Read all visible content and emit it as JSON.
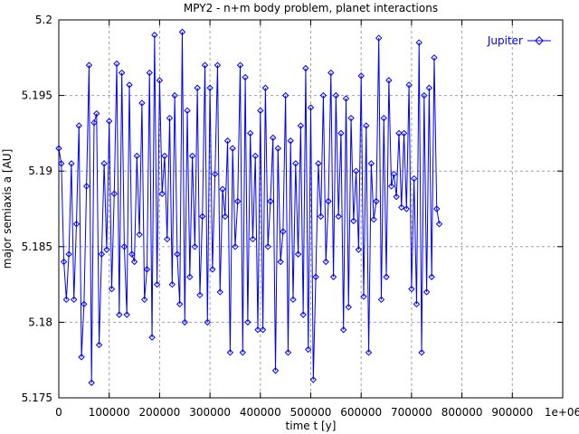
{
  "chart_data": {
    "type": "line",
    "title": "MPY2 - n+m body problem, planet interactions",
    "xlabel": "time t [y]",
    "ylabel": "major semiaxis a [AU]",
    "xlim": [
      0,
      1000000
    ],
    "ylim": [
      5.175,
      5.2
    ],
    "x_ticks": [
      0,
      100000,
      200000,
      300000,
      400000,
      500000,
      600000,
      700000,
      800000,
      900000,
      1000000
    ],
    "x_tick_labels": [
      "0",
      "100000",
      "200000",
      "300000",
      "400000",
      "500000",
      "600000",
      "700000",
      "800000",
      "900000",
      "1e+06"
    ],
    "y_ticks": [
      5.175,
      5.18,
      5.185,
      5.19,
      5.195,
      5.2
    ],
    "y_tick_labels": [
      "5.175",
      "5.18",
      "5.185",
      "5.19",
      "5.195",
      "5.2"
    ],
    "grid": true,
    "legend_position": "top-right",
    "series_color": "#0000ff",
    "series": [
      {
        "name": "Jupiter",
        "x_start": 0,
        "x_step": 5000,
        "values": [
          5.1915,
          5.1905,
          5.184,
          5.1815,
          5.1845,
          5.1905,
          5.1815,
          5.1865,
          5.193,
          5.1777,
          5.1812,
          5.189,
          5.197,
          5.176,
          5.1932,
          5.1938,
          5.1785,
          5.1845,
          5.1905,
          5.1848,
          5.1933,
          5.1822,
          5.1885,
          5.1971,
          5.1805,
          5.1965,
          5.185,
          5.1805,
          5.1957,
          5.1845,
          5.184,
          5.191,
          5.1858,
          5.1945,
          5.1815,
          5.1835,
          5.1965,
          5.179,
          5.199,
          5.1825,
          5.196,
          5.1885,
          5.191,
          5.1855,
          5.1935,
          5.1825,
          5.195,
          5.1845,
          5.1812,
          5.1992,
          5.18,
          5.194,
          5.183,
          5.191,
          5.185,
          5.1955,
          5.1818,
          5.187,
          5.197,
          5.18,
          5.1955,
          5.1835,
          5.1898,
          5.197,
          5.182,
          5.1888,
          5.187,
          5.192,
          5.178,
          5.1915,
          5.185,
          5.188,
          5.197,
          5.178,
          5.1962,
          5.18,
          5.1925,
          5.1855,
          5.191,
          5.1795,
          5.194,
          5.1795,
          5.1955,
          5.185,
          5.188,
          5.1922,
          5.1768,
          5.1915,
          5.184,
          5.186,
          5.195,
          5.178,
          5.192,
          5.1815,
          5.1905,
          5.1845,
          5.193,
          5.1805,
          5.1968,
          5.1782,
          5.1942,
          5.1762,
          5.183,
          5.1905,
          5.187,
          5.195,
          5.184,
          5.188,
          5.1965,
          5.183,
          5.195,
          5.187,
          5.1925,
          5.1795,
          5.1948,
          5.181,
          5.1935,
          5.1867,
          5.19,
          5.1848,
          5.1963,
          5.1817,
          5.193,
          5.178,
          5.1905,
          5.1868,
          5.188,
          5.1988,
          5.1815,
          5.1935,
          5.183,
          5.196,
          5.189,
          5.1898,
          5.1883,
          5.1925,
          5.1876,
          5.1925,
          5.1875,
          5.1957,
          5.1822,
          5.1895,
          5.1812,
          5.1985,
          5.178,
          5.195,
          5.182,
          5.1955,
          5.183,
          5.1975,
          5.1875,
          5.1865
        ]
      }
    ]
  }
}
